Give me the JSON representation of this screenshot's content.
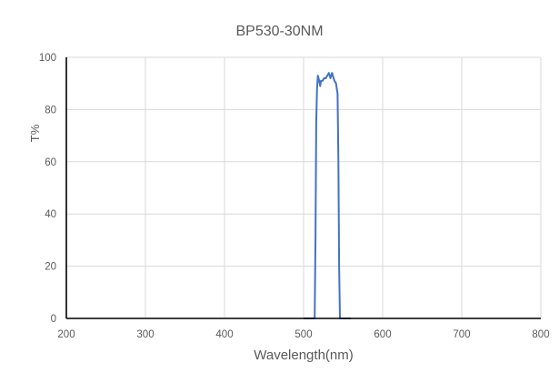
{
  "chart_data": {
    "type": "line",
    "title": "BP530-30NM",
    "xlabel": "Wavelength(nm)",
    "ylabel": "T%",
    "xlim": [
      200,
      800
    ],
    "ylim": [
      0,
      100
    ],
    "xticks": [
      200,
      300,
      400,
      500,
      600,
      700,
      800
    ],
    "yticks": [
      0,
      20,
      40,
      60,
      80,
      100
    ],
    "grid": true,
    "legend": null,
    "series": [
      {
        "name": "T%",
        "color": "#4472C4",
        "x": [
          500,
          514,
          515,
          516,
          517,
          518,
          519,
          521,
          522,
          524,
          526,
          528,
          530,
          532,
          534,
          535,
          536,
          537,
          539,
          541,
          543,
          544,
          545,
          546,
          547,
          560
        ],
        "y": [
          0,
          0,
          30,
          75,
          88,
          93,
          92,
          89,
          91,
          91,
          92,
          92,
          93,
          94,
          92,
          93,
          94,
          93,
          91,
          90,
          86,
          60,
          20,
          0,
          0,
          0
        ]
      }
    ]
  }
}
